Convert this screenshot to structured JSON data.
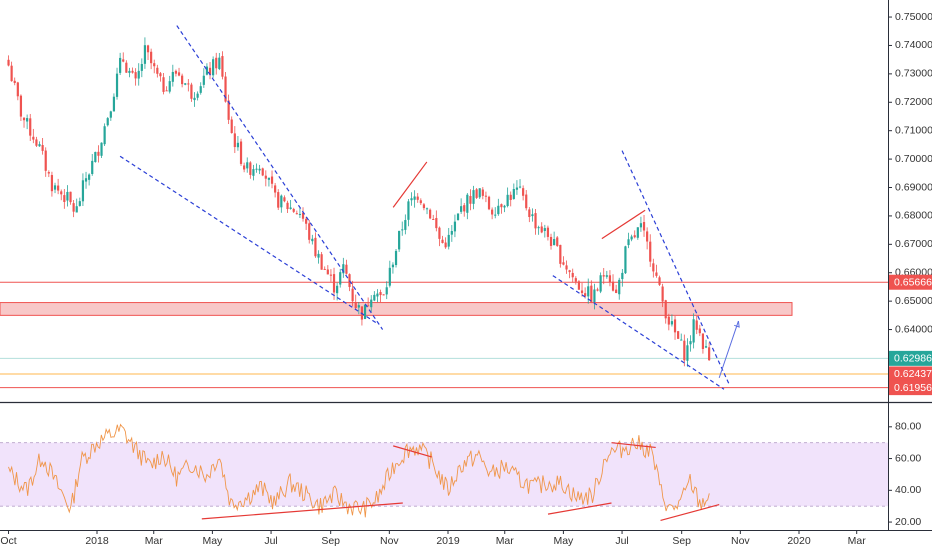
{
  "chart_data": [
    {
      "type": "candlestick",
      "title": "",
      "ylim": [
        0.6145,
        0.756
      ],
      "y_ticks": [
        "0.75000",
        "0.74000",
        "0.73000",
        "0.72000",
        "0.71000",
        "0.70000",
        "0.69000",
        "0.68000",
        "0.67000",
        "0.66000",
        "0.65000",
        "0.64000"
      ],
      "x_ticks": [
        "Oct",
        "2018",
        "Mar",
        "May",
        "Jul",
        "Sep",
        "Nov",
        "2019",
        "Mar",
        "May",
        "Jul",
        "Sep",
        "Nov",
        "2020",
        "Mar"
      ],
      "price_path": [
        [
          "2017-10-01",
          0.733
        ],
        [
          "2017-10-15",
          0.715
        ],
        [
          "2017-11-01",
          0.705
        ],
        [
          "2017-11-15",
          0.691
        ],
        [
          "2017-12-01",
          0.686
        ],
        [
          "2017-12-10",
          0.681
        ],
        [
          "2017-12-20",
          0.693
        ],
        [
          "2018-01-01",
          0.702
        ],
        [
          "2018-01-15",
          0.719
        ],
        [
          "2018-01-27",
          0.736
        ],
        [
          "2018-02-10",
          0.726
        ],
        [
          "2018-02-20",
          0.738
        ],
        [
          "2018-03-10",
          0.725
        ],
        [
          "2018-03-25",
          0.731
        ],
        [
          "2018-04-10",
          0.723
        ],
        [
          "2018-04-25",
          0.73
        ],
        [
          "2018-05-08",
          0.735
        ],
        [
          "2018-05-20",
          0.71
        ],
        [
          "2018-06-05",
          0.696
        ],
        [
          "2018-06-20",
          0.699
        ],
        [
          "2018-07-05",
          0.686
        ],
        [
          "2018-07-20",
          0.683
        ],
        [
          "2018-08-01",
          0.681
        ],
        [
          "2018-08-15",
          0.668
        ],
        [
          "2018-08-25",
          0.662
        ],
        [
          "2018-09-05",
          0.655
        ],
        [
          "2018-09-15",
          0.662
        ],
        [
          "2018-09-25",
          0.65
        ],
        [
          "2018-10-05",
          0.645
        ],
        [
          "2018-10-15",
          0.655
        ],
        [
          "2018-10-25",
          0.65
        ],
        [
          "2018-11-05",
          0.665
        ],
        [
          "2018-11-20",
          0.683
        ],
        [
          "2018-12-01",
          0.688
        ],
        [
          "2018-12-15",
          0.68
        ],
        [
          "2018-12-25",
          0.67
        ],
        [
          "2019-01-03",
          0.672
        ],
        [
          "2019-01-15",
          0.683
        ],
        [
          "2019-02-01",
          0.689
        ],
        [
          "2019-02-15",
          0.682
        ],
        [
          "2019-03-01",
          0.686
        ],
        [
          "2019-03-15",
          0.689
        ],
        [
          "2019-04-01",
          0.678
        ],
        [
          "2019-04-15",
          0.673
        ],
        [
          "2019-05-01",
          0.664
        ],
        [
          "2019-05-15",
          0.656
        ],
        [
          "2019-06-01",
          0.651
        ],
        [
          "2019-06-15",
          0.662
        ],
        [
          "2019-06-25",
          0.652
        ],
        [
          "2019-07-05",
          0.668
        ],
        [
          "2019-07-20",
          0.676
        ],
        [
          "2019-08-01",
          0.665
        ],
        [
          "2019-08-10",
          0.652
        ],
        [
          "2019-08-20",
          0.642
        ],
        [
          "2019-09-05",
          0.631
        ],
        [
          "2019-09-15",
          0.643
        ],
        [
          "2019-09-30",
          0.629
        ]
      ],
      "horizontal_levels": [
        {
          "value": "0.65666",
          "color": "#ef5350",
          "line": "#ef5350"
        },
        {
          "value": "0.62986",
          "color": "#26a69a",
          "line": "#b2dfdb"
        },
        {
          "value": "0.62437",
          "color": "#ef5350",
          "line": "#ffb74d"
        },
        {
          "value": "0.61956",
          "color": "#ef5350",
          "line": "#ef5350"
        }
      ],
      "zone": {
        "from": 0.645,
        "to": 0.6495,
        "fill": "#f8c8c8",
        "stroke": "#ef5350"
      },
      "trendlines_blue": [
        [
          [
            "2018-03-25",
            0.747
          ],
          [
            "2018-10-25",
            0.64
          ]
        ],
        [
          [
            "2018-01-25",
            0.701
          ],
          [
            "2018-10-20",
            0.642
          ]
        ],
        [
          [
            "2019-07-01",
            0.703
          ],
          [
            "2019-10-20",
            0.621
          ]
        ],
        [
          [
            "2019-04-20",
            0.659
          ],
          [
            "2019-10-15",
            0.619
          ]
        ]
      ],
      "trendlines_red": [
        [
          [
            "2018-11-05",
            0.683
          ],
          [
            "2018-12-10",
            0.699
          ]
        ],
        [
          [
            "2019-06-10",
            0.672
          ],
          [
            "2019-07-25",
            0.682
          ]
        ]
      ],
      "projection_arrow": [
        [
          "2019-10-10",
          0.623
        ],
        [
          "2019-10-30",
          0.643
        ]
      ],
      "colors": {
        "up": "#26a69a",
        "down": "#ef5350",
        "trend": "#2b3fd6",
        "axis_text": "#333333"
      }
    },
    {
      "type": "line",
      "title": "",
      "ylim": [
        15,
        95
      ],
      "y_ticks": [
        "80.00",
        "60.00",
        "40.00",
        "20.00"
      ],
      "band": {
        "upper": 70,
        "lower": 30,
        "fill": "#f1e3fb"
      },
      "series": [
        {
          "color": "#f0964a",
          "x": [
            "2017-10-01",
            "2017-10-20",
            "2017-11-05",
            "2017-11-20",
            "2017-12-05",
            "2017-12-15",
            "2018-01-01",
            "2018-01-15",
            "2018-01-27",
            "2018-02-10",
            "2018-02-25",
            "2018-03-10",
            "2018-03-25",
            "2018-04-10",
            "2018-04-25",
            "2018-05-08",
            "2018-05-20",
            "2018-06-05",
            "2018-06-20",
            "2018-07-05",
            "2018-07-20",
            "2018-08-05",
            "2018-08-20",
            "2018-09-05",
            "2018-09-20",
            "2018-10-05",
            "2018-10-20",
            "2018-11-05",
            "2018-11-20",
            "2018-12-01",
            "2018-12-15",
            "2019-01-01",
            "2019-01-15",
            "2019-02-01",
            "2019-02-15",
            "2019-03-01",
            "2019-03-15",
            "2019-04-01",
            "2019-04-15",
            "2019-05-01",
            "2019-05-15",
            "2019-06-01",
            "2019-06-15",
            "2019-07-01",
            "2019-07-15",
            "2019-08-01",
            "2019-08-10",
            "2019-08-20",
            "2019-09-01",
            "2019-09-10",
            "2019-09-20",
            "2019-09-30"
          ],
          "values": [
            52,
            40,
            62,
            44,
            28,
            58,
            70,
            75,
            78,
            66,
            55,
            63,
            48,
            57,
            49,
            62,
            32,
            35,
            42,
            32,
            45,
            38,
            30,
            37,
            30,
            28,
            35,
            55,
            66,
            67,
            58,
            40,
            56,
            62,
            50,
            55,
            47,
            42,
            45,
            44,
            35,
            37,
            63,
            66,
            70,
            64,
            40,
            27,
            33,
            46,
            31,
            37
          ]
        }
      ],
      "trendlines_red": [
        [
          [
            "2018-04-20",
            22
          ],
          [
            "2018-11-15",
            32
          ]
        ],
        [
          [
            "2018-11-05",
            68
          ],
          [
            "2018-12-15",
            61
          ]
        ],
        [
          [
            "2019-04-15",
            25
          ],
          [
            "2019-06-20",
            32
          ]
        ],
        [
          [
            "2019-06-20",
            70
          ],
          [
            "2019-08-05",
            67
          ]
        ],
        [
          [
            "2019-08-10",
            21
          ],
          [
            "2019-10-10",
            31
          ]
        ]
      ]
    }
  ]
}
